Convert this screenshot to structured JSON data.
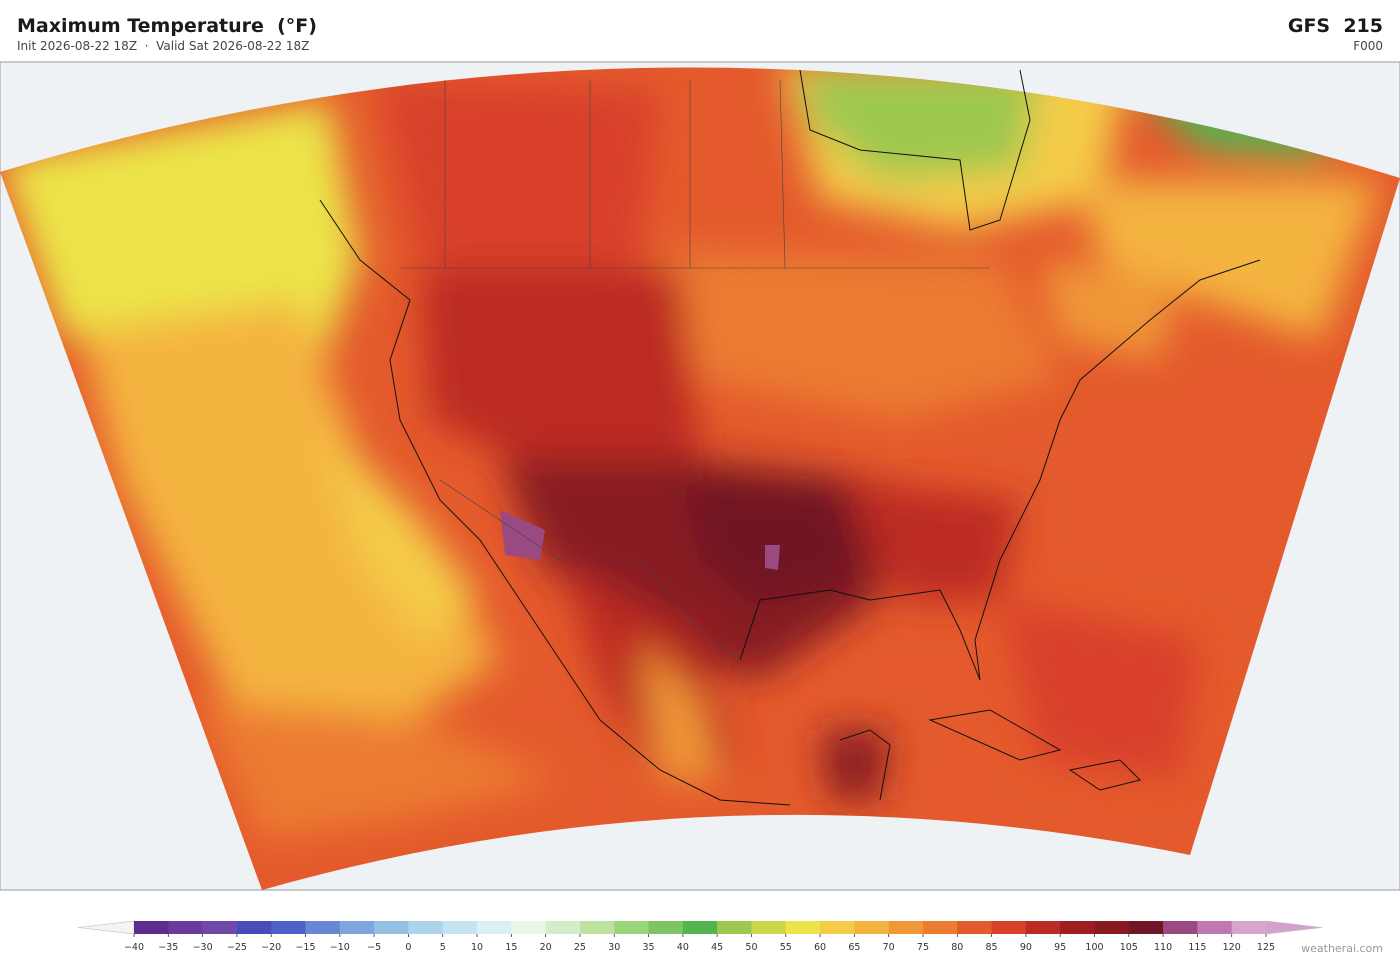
{
  "header": {
    "title": "Maximum Temperature  (°F)",
    "subtitle": "Init 2026-08-22 18Z  ·  Valid Sat 2026-08-22 18Z",
    "model": "GFS  215",
    "forecast_hour": "F000"
  },
  "colorbar": {
    "ticks": [
      {
        "value": -40,
        "label": "−40"
      },
      {
        "value": -35,
        "label": "−35"
      },
      {
        "value": -30,
        "label": "−30"
      },
      {
        "value": -25,
        "label": "−25"
      },
      {
        "value": -20,
        "label": "−20"
      },
      {
        "value": -15,
        "label": "−15"
      },
      {
        "value": -10,
        "label": "−10"
      },
      {
        "value": -5,
        "label": "−5"
      },
      0,
      5,
      10,
      15,
      20,
      25,
      30,
      35,
      40,
      45,
      50,
      55,
      60,
      65,
      70,
      75,
      80,
      85,
      90,
      95,
      100,
      105,
      110,
      115,
      120,
      125
    ],
    "colors": [
      "#5b2d8c",
      "#6a3a9c",
      "#7048a8",
      "#4a4ab8",
      "#4d62c8",
      "#6886d4",
      "#7ea6dc",
      "#94c0e4",
      "#aed4ec",
      "#c6e4f0",
      "#dcf0f4",
      "#e8f6ec",
      "#d4ecc8",
      "#bce4a0",
      "#9cd67c",
      "#7cc464",
      "#56b450",
      "#9cc850",
      "#cad84c",
      "#ece448",
      "#f4cc48",
      "#f4b440",
      "#f09838",
      "#ec7c30",
      "#e45a2c",
      "#d8402a",
      "#bc2a24",
      "#9e1e22",
      "#881a22",
      "#701624",
      "#9a4a80",
      "#c078b0",
      "#d8a4cc"
    ],
    "under_color": "#f4f4f4",
    "over_color": "#d4a0cc"
  },
  "footer": {
    "credit": "weatherai.com"
  }
}
